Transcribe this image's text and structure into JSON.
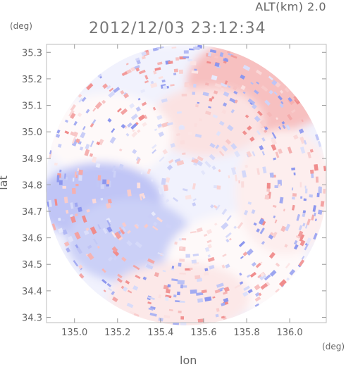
{
  "header": {
    "altitude_label": "ALT(km) 2.0",
    "timestamp": "2012/12/03 23:12:34"
  },
  "chart_data": {
    "type": "heatmap",
    "title": "2012/12/03 23:12:34",
    "xlabel": "lon",
    "ylabel": "lat",
    "x_unit": "(deg)",
    "y_unit": "(deg)",
    "xlim": [
      134.87,
      136.17
    ],
    "ylim": [
      34.28,
      35.33
    ],
    "x_ticks": [
      135.0,
      135.2,
      135.4,
      135.6,
      135.8,
      136.0
    ],
    "x_tick_labels": [
      "135.0",
      "135.2",
      "135.4",
      "135.6",
      "135.8",
      "136.0"
    ],
    "y_ticks": [
      34.3,
      34.4,
      34.5,
      34.6,
      34.7,
      34.8,
      34.9,
      35.0,
      35.1,
      35.2,
      35.3
    ],
    "y_tick_labels": [
      "34.3",
      "34.4",
      "34.5",
      "34.6",
      "34.7",
      "34.8",
      "34.9",
      "35.0",
      "35.1",
      "35.2",
      "35.3"
    ],
    "radar_center": [
      135.52,
      34.8
    ],
    "radar_radius_deg": 0.53,
    "colormap": {
      "negative": "#8c96ee",
      "zero": "#ffffff",
      "positive": "#f08c8c"
    },
    "grid": false
  }
}
